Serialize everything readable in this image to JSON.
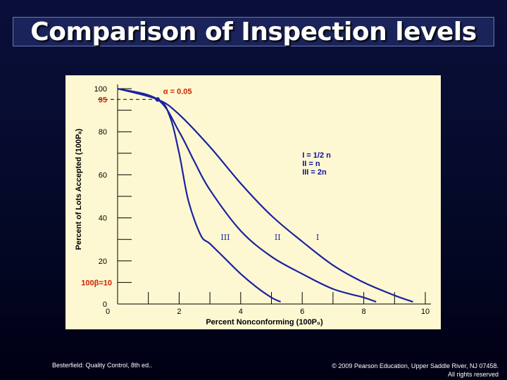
{
  "slide": {
    "title": "Comparison of Inspection levels",
    "footer_left": "Besterfield: Quality Control, 8th ed..",
    "footer_right_line1": "© 2009 Pearson Education, Upper Saddle River, NJ 07458.",
    "footer_right_line2": "All rights reserved"
  },
  "chart_data": {
    "type": "line",
    "title": "",
    "xlabel": "Percent Nonconforming (100P₀)",
    "ylabel": "Percent of Lots Accepted (100Pₐ)",
    "xlim": [
      0,
      10
    ],
    "ylim": [
      0,
      100
    ],
    "x_ticks": [
      0,
      2,
      4,
      6,
      8,
      10
    ],
    "y_ticks": [
      0,
      20,
      40,
      60,
      80,
      100
    ],
    "y_minor_ticks": [
      10,
      30,
      50,
      70,
      90
    ],
    "x_minor_ticks": [
      1,
      3,
      5,
      7,
      9
    ],
    "alpha_label": "α = 0.05",
    "alpha_value": 95,
    "alpha_point_x": 1.3,
    "beta_label": "100β=10",
    "beta_value": 10,
    "legend": [
      "I = 1/2 n",
      "II = n",
      "III = 2n"
    ],
    "series": [
      {
        "name": "I",
        "label": "I",
        "points": [
          [
            0,
            100
          ],
          [
            1.3,
            95
          ],
          [
            2,
            88
          ],
          [
            3,
            73
          ],
          [
            4,
            56
          ],
          [
            5,
            41
          ],
          [
            6,
            29
          ],
          [
            7,
            18
          ],
          [
            8,
            10
          ],
          [
            9,
            4
          ],
          [
            9.6,
            1
          ]
        ]
      },
      {
        "name": "II",
        "label": "II",
        "points": [
          [
            0,
            100
          ],
          [
            1.3,
            95
          ],
          [
            2,
            80
          ],
          [
            2.5,
            66
          ],
          [
            3,
            53
          ],
          [
            4,
            34
          ],
          [
            5,
            22
          ],
          [
            6,
            14
          ],
          [
            7,
            7
          ],
          [
            8,
            3
          ],
          [
            8.4,
            1
          ]
        ]
      },
      {
        "name": "III",
        "label": "III",
        "points": [
          [
            0,
            100
          ],
          [
            1.3,
            95
          ],
          [
            1.7,
            87
          ],
          [
            2,
            70
          ],
          [
            2.3,
            48
          ],
          [
            2.7,
            32
          ],
          [
            3,
            28
          ],
          [
            3.5,
            21
          ],
          [
            4,
            14
          ],
          [
            4.5,
            8
          ],
          [
            5,
            3
          ],
          [
            5.3,
            1
          ]
        ]
      }
    ],
    "curve_label_positions": [
      {
        "name": "I",
        "x": 6.5,
        "y": 31
      },
      {
        "name": "II",
        "x": 5.2,
        "y": 31
      },
      {
        "name": "III",
        "x": 3.5,
        "y": 31
      }
    ],
    "colors": {
      "curve": "#1a22a0",
      "axis": "#000000",
      "label": "#0a10a0",
      "red": "#cc2200",
      "background": "#fdf8d2"
    }
  }
}
